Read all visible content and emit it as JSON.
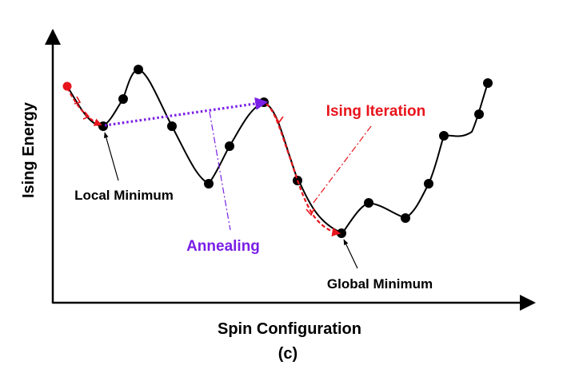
{
  "labels": {
    "y_axis": "Ising Energy",
    "x_axis": "Spin Configuration",
    "caption": "(c)",
    "local_minimum": "Local Minimum",
    "global_minimum": "Global Minimum",
    "annealing": "Annealing",
    "ising_iteration": "Ising Iteration"
  },
  "colors": {
    "axis": "#000000",
    "curve": "#000000",
    "node": "#000000",
    "start_node": "#e8141c",
    "annealing": "#7a1fe6",
    "ising_iteration": "#e8141c"
  }
}
